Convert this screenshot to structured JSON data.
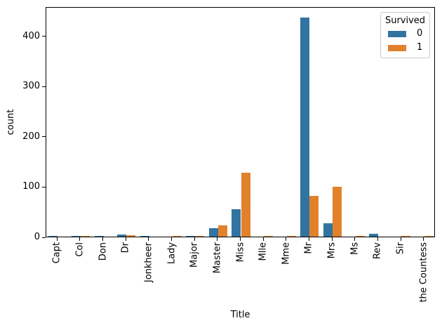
{
  "chart_data": {
    "type": "bar",
    "title": "",
    "xlabel": "Title",
    "ylabel": "count",
    "categories": [
      "Capt",
      "Col",
      "Don",
      "Dr",
      "Jonkheer",
      "Lady",
      "Major",
      "Master",
      "Miss",
      "Mlle",
      "Mme",
      "Mr",
      "Mrs",
      "Ms",
      "Rev",
      "Sir",
      "the Countess"
    ],
    "series": [
      {
        "name": "0",
        "color": "#3274a1",
        "values": [
          1,
          1,
          1,
          4,
          1,
          0,
          1,
          17,
          55,
          0,
          0,
          436,
          26,
          0,
          6,
          0,
          0
        ]
      },
      {
        "name": "1",
        "color": "#e1812c",
        "values": [
          0,
          1,
          0,
          3,
          0,
          1,
          1,
          23,
          127,
          2,
          1,
          81,
          99,
          1,
          0,
          1,
          1
        ]
      }
    ],
    "legend": {
      "title": "Survived",
      "position": "upper right"
    },
    "yticks": [
      0,
      100,
      200,
      300,
      400
    ],
    "ylim": [
      0,
      458
    ],
    "grid": false,
    "bar_group_width": 0.8
  }
}
